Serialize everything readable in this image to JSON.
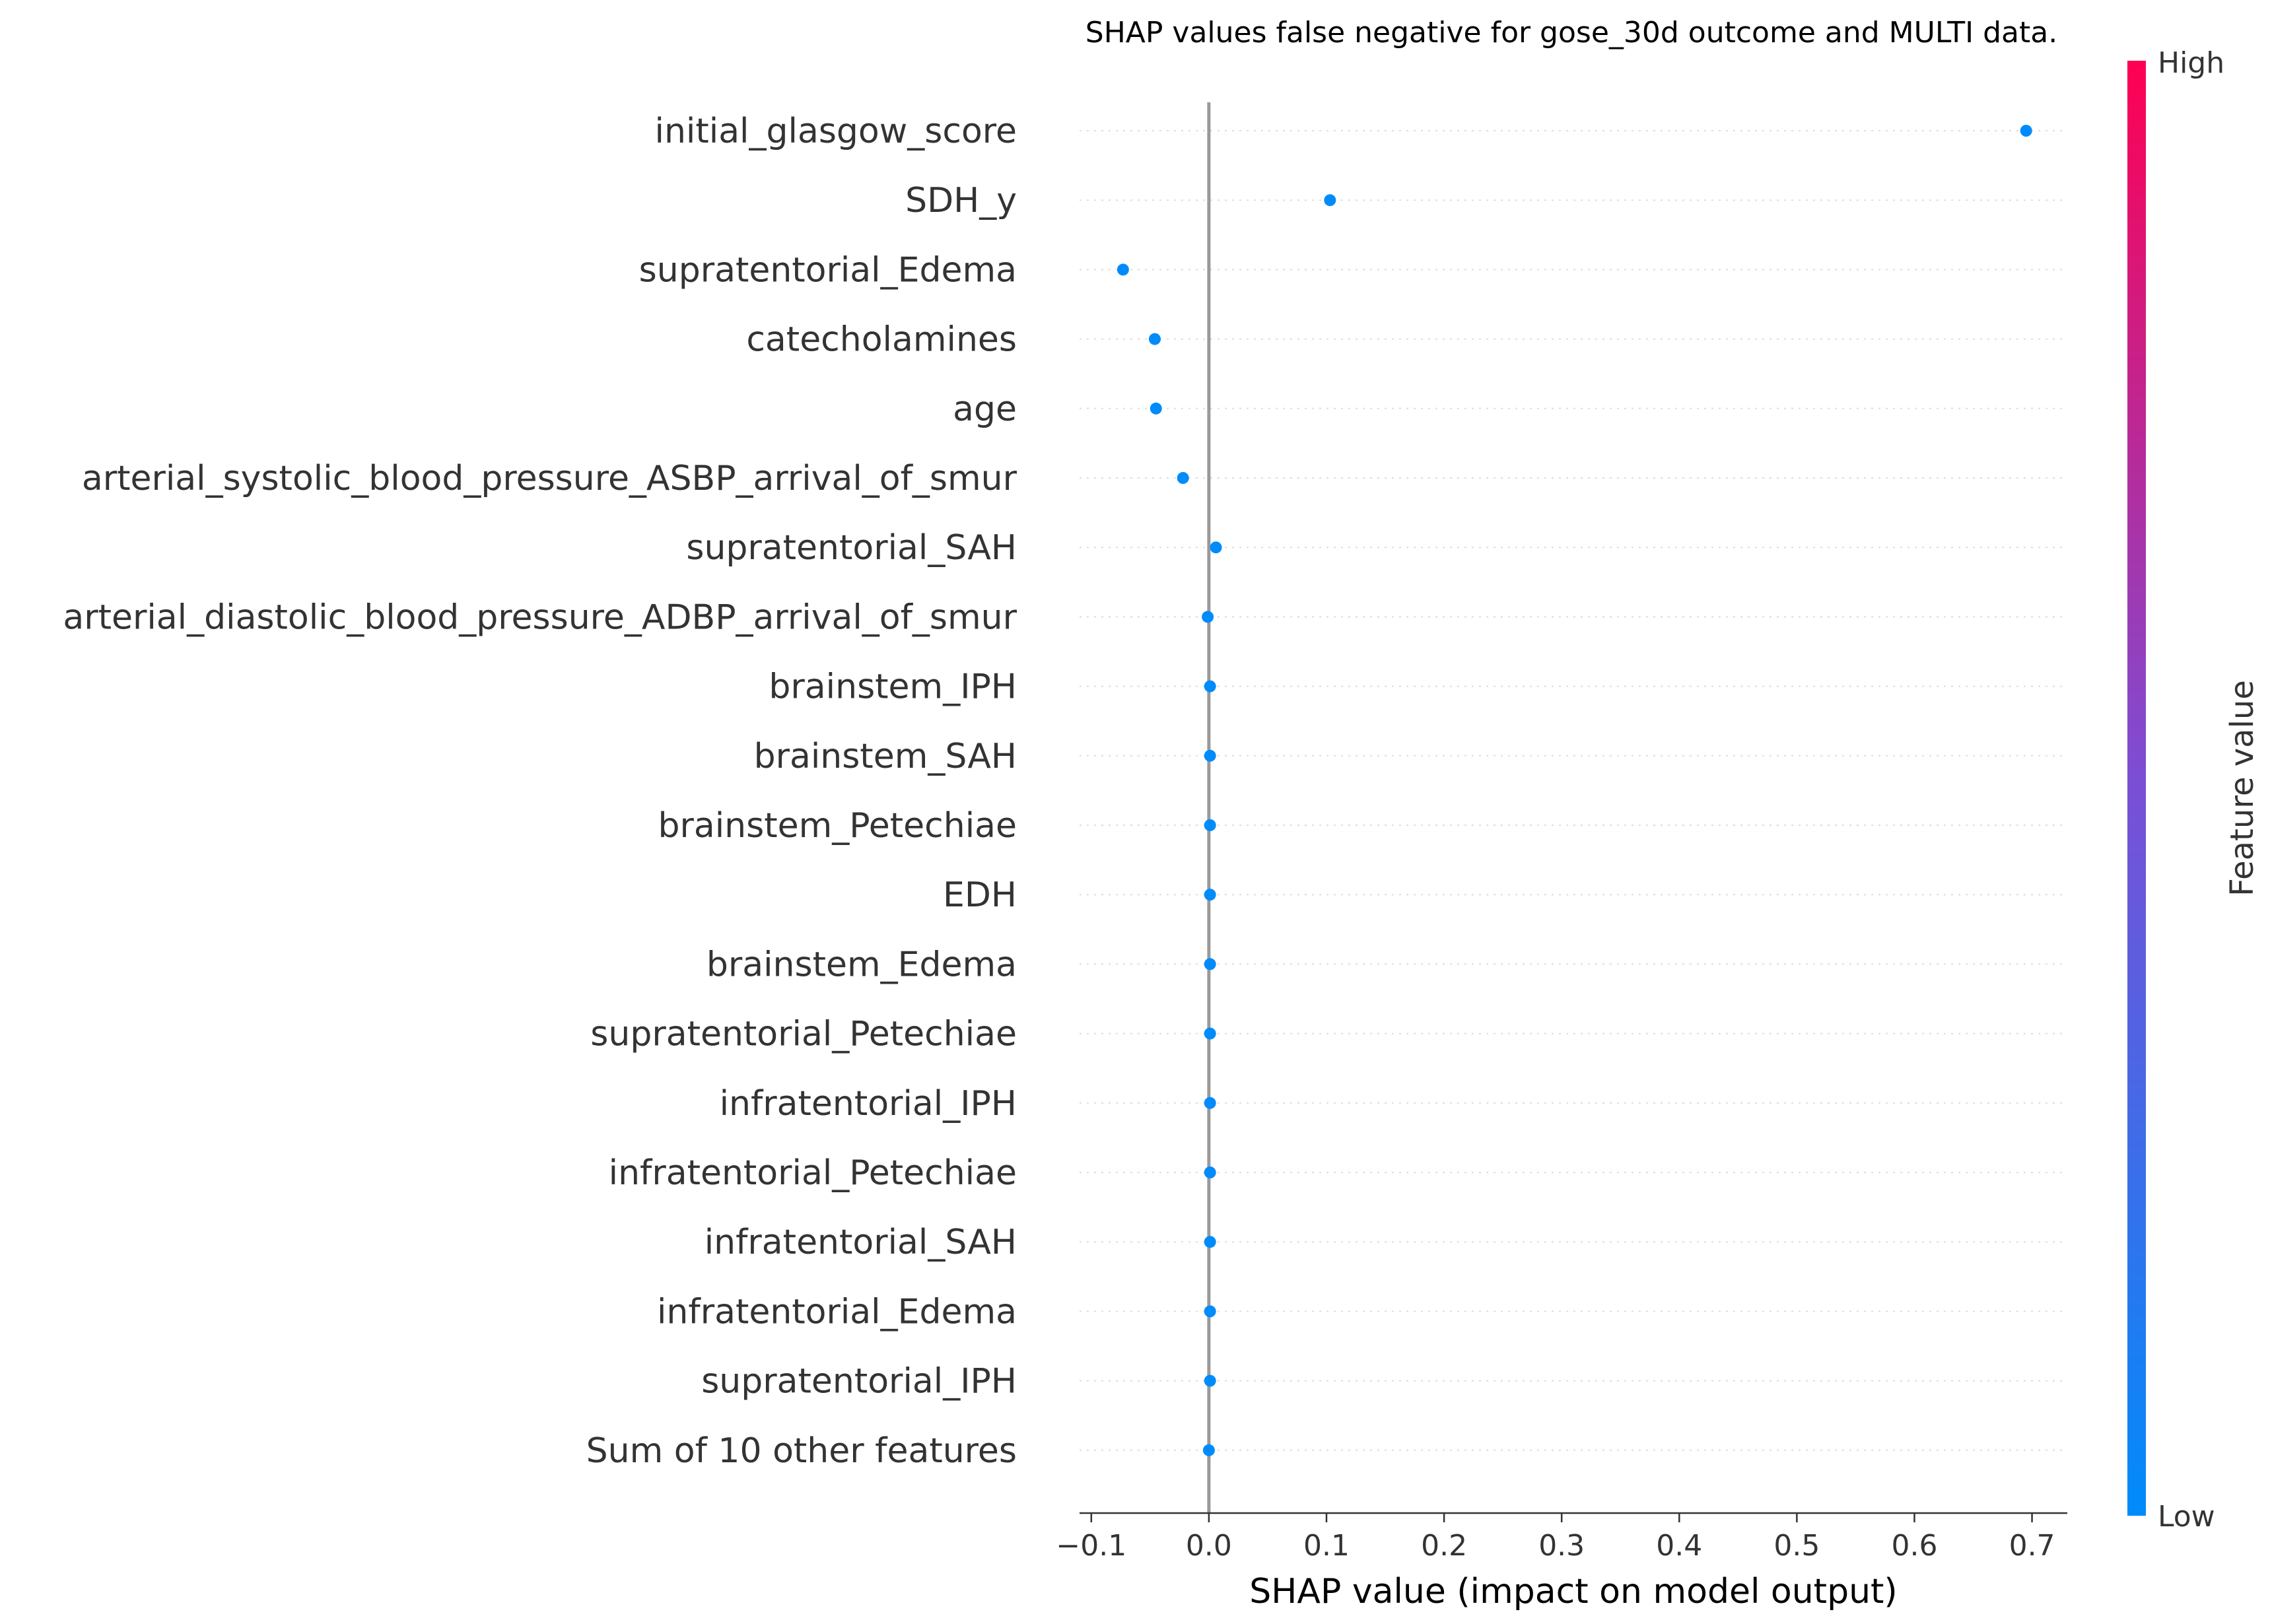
{
  "chart_data": {
    "type": "scatter",
    "title": "SHAP values false negative for gose_30d outcome and MULTI data.",
    "xlabel": "SHAP value (impact on model output)",
    "ylabel": "",
    "xlim": [
      -0.11,
      0.73
    ],
    "xticks": [
      -0.1,
      0.0,
      0.1,
      0.2,
      0.3,
      0.4,
      0.5,
      0.6,
      0.7
    ],
    "xtick_labels": [
      "−0.1",
      "0.0",
      "0.1",
      "0.2",
      "0.3",
      "0.4",
      "0.5",
      "0.6",
      "0.7"
    ],
    "reference_line_x": 0.0,
    "grid": "horizontal dotted per feature",
    "features": [
      "initial_glasgow_score",
      "SDH_y",
      "supratentorial_Edema",
      "catecholamines",
      "age",
      "arterial_systolic_blood_pressure_ASBP_arrival_of_smur",
      "supratentorial_SAH",
      "arterial_diastolic_blood_pressure_ADBP_arrival_of_smur",
      "brainstem_IPH",
      "brainstem_SAH",
      "brainstem_Petechiae",
      "EDH",
      "brainstem_Edema",
      "supratentorial_Petechiae",
      "infratentorial_IPH",
      "infratentorial_Petechiae",
      "infratentorial_SAH",
      "infratentorial_Edema",
      "supratentorial_IPH",
      "Sum of 10 other features"
    ],
    "shap_values": [
      0.695,
      0.103,
      -0.073,
      -0.046,
      -0.045,
      -0.022,
      0.006,
      -0.001,
      0.001,
      0.001,
      0.001,
      0.001,
      0.001,
      0.001,
      0.001,
      0.001,
      0.001,
      0.001,
      0.001,
      0.0
    ],
    "point_color": "#008bfb",
    "colorbar": {
      "title": "Feature value",
      "high_label": "High",
      "low_label": "Low",
      "high_color": "#ff0052",
      "low_color": "#008bfb"
    }
  }
}
